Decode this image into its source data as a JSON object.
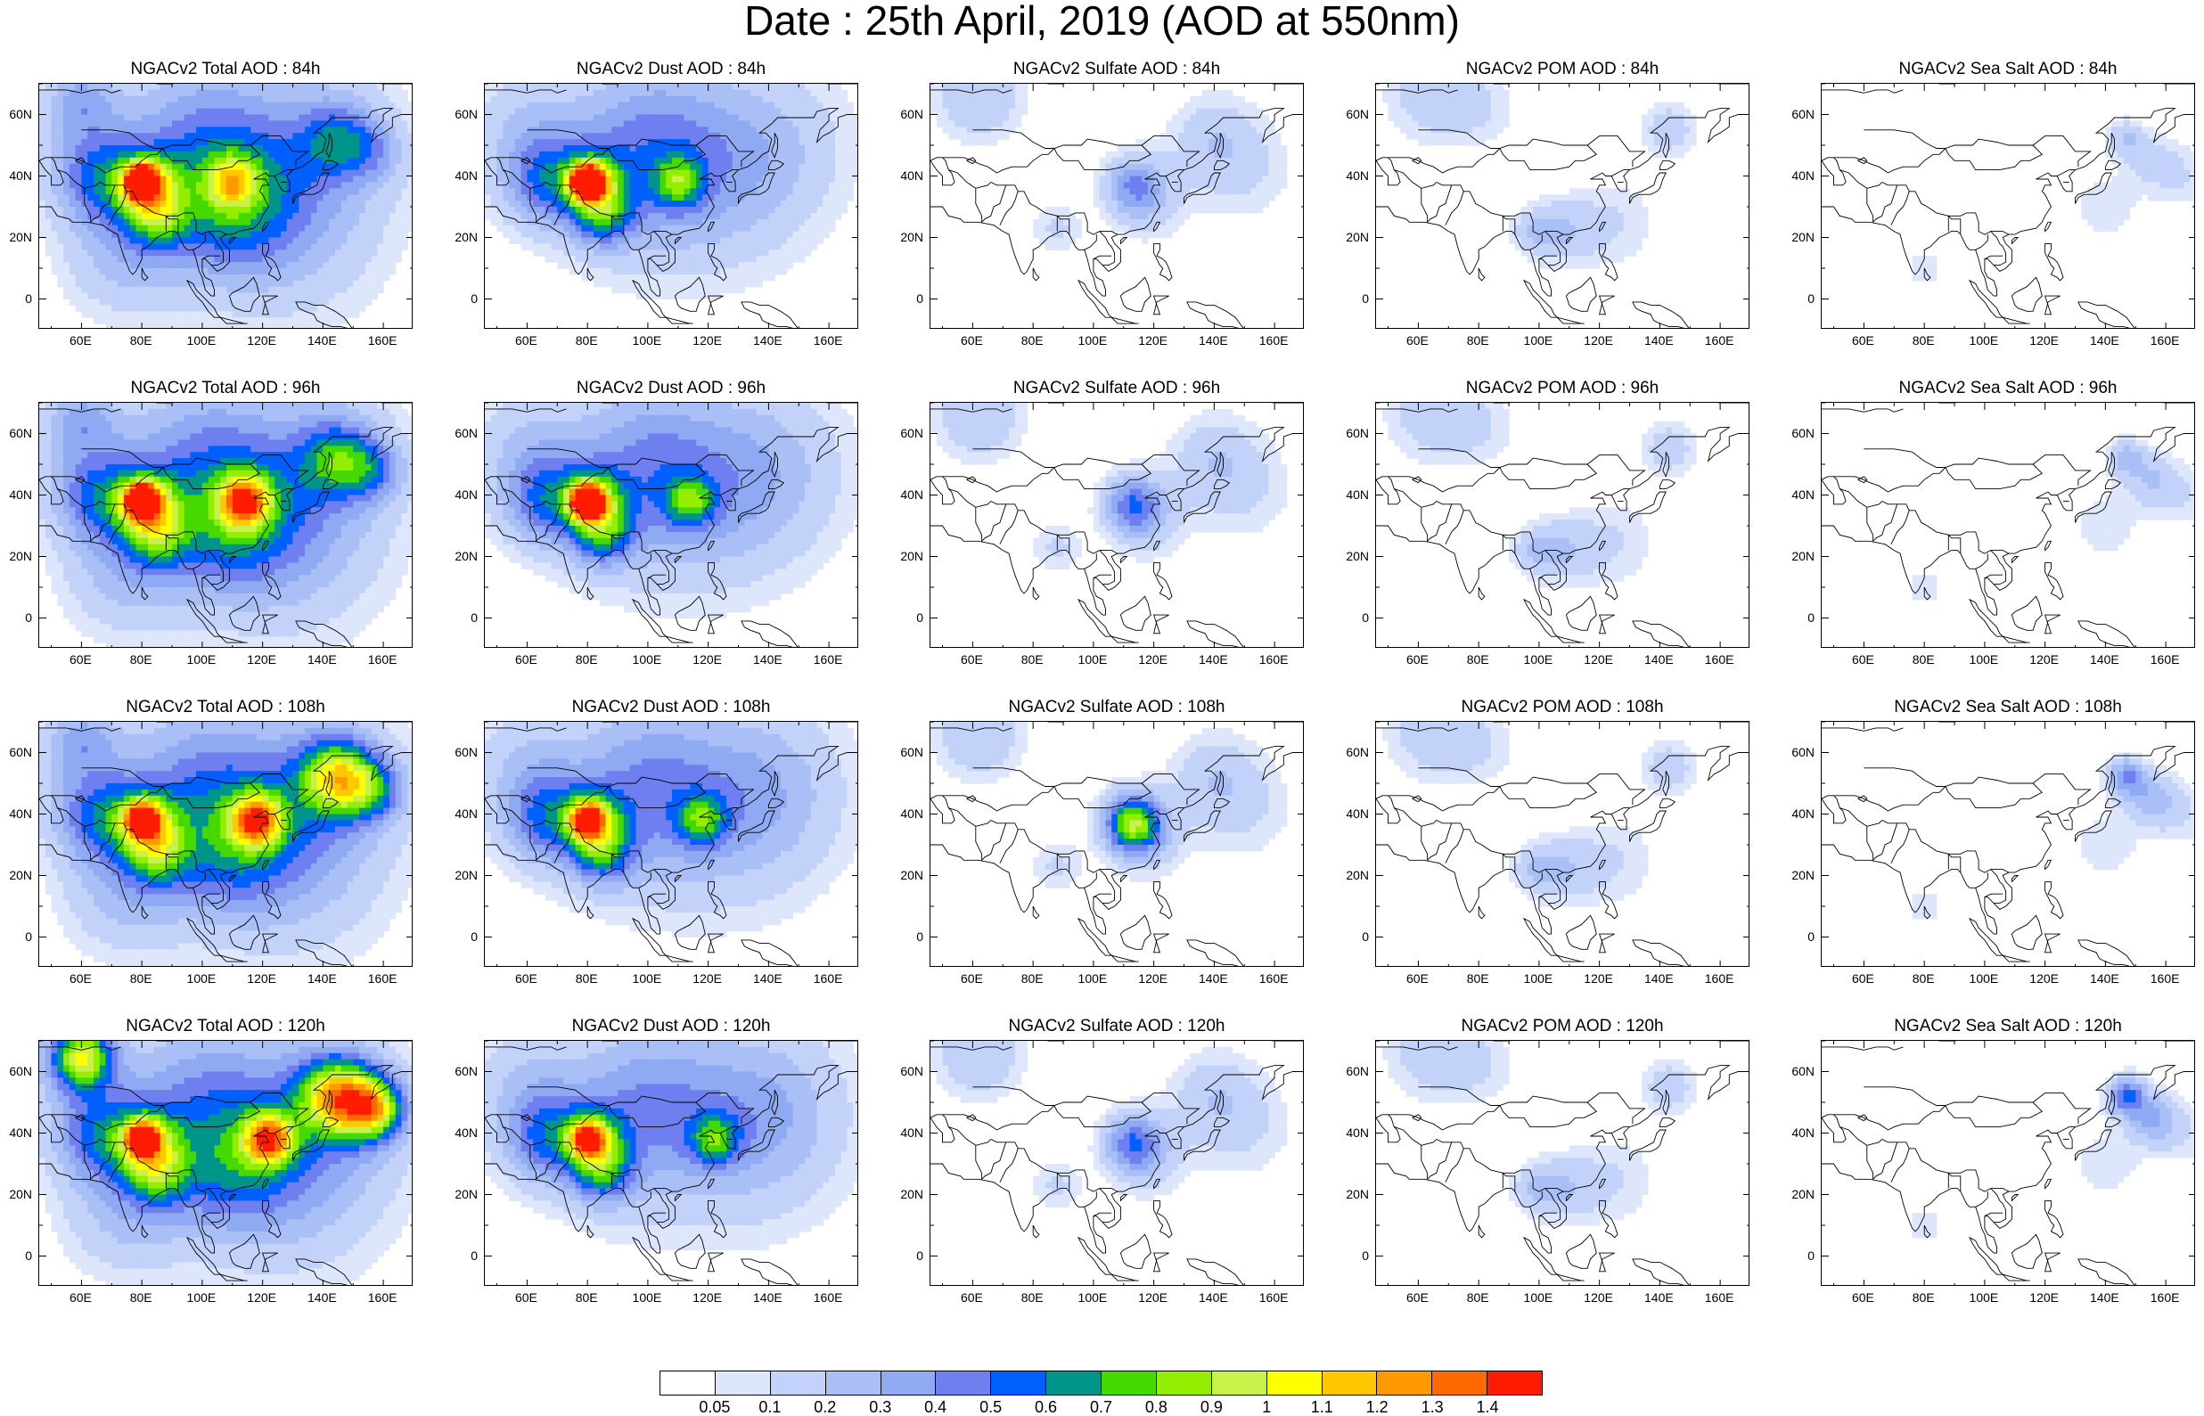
{
  "title": "Date : 25th April, 2019 (AOD at 550nm)",
  "axes": {
    "lat_labels": [
      "60N",
      "40N",
      "20N",
      "0"
    ],
    "lon_labels": [
      "60E",
      "80E",
      "100E",
      "120E",
      "140E",
      "160E"
    ]
  },
  "panels": [
    {
      "title": "NGACv2 Total AOD : 84h",
      "species": "total",
      "lead": 84
    },
    {
      "title": "NGACv2 Dust AOD : 84h",
      "species": "dust",
      "lead": 84
    },
    {
      "title": "NGACv2 Sulfate AOD : 84h",
      "species": "sulfate",
      "lead": 84
    },
    {
      "title": "NGACv2 POM AOD : 84h",
      "species": "pom",
      "lead": 84
    },
    {
      "title": "NGACv2 Sea Salt AOD : 84h",
      "species": "seasalt",
      "lead": 84
    },
    {
      "title": "NGACv2 Total AOD : 96h",
      "species": "total",
      "lead": 96
    },
    {
      "title": "NGACv2 Dust AOD : 96h",
      "species": "dust",
      "lead": 96
    },
    {
      "title": "NGACv2 Sulfate AOD : 96h",
      "species": "sulfate",
      "lead": 96
    },
    {
      "title": "NGACv2 POM AOD : 96h",
      "species": "pom",
      "lead": 96
    },
    {
      "title": "NGACv2 Sea Salt AOD : 96h",
      "species": "seasalt",
      "lead": 96
    },
    {
      "title": "NGACv2 Total AOD : 108h",
      "species": "total",
      "lead": 108
    },
    {
      "title": "NGACv2 Dust AOD : 108h",
      "species": "dust",
      "lead": 108
    },
    {
      "title": "NGACv2 Sulfate AOD : 108h",
      "species": "sulfate",
      "lead": 108
    },
    {
      "title": "NGACv2 POM AOD : 108h",
      "species": "pom",
      "lead": 108
    },
    {
      "title": "NGACv2 Sea Salt AOD : 108h",
      "species": "seasalt",
      "lead": 108
    },
    {
      "title": "NGACv2 Total AOD : 120h",
      "species": "total",
      "lead": 120
    },
    {
      "title": "NGACv2 Dust AOD : 120h",
      "species": "dust",
      "lead": 120
    },
    {
      "title": "NGACv2 Sulfate AOD : 120h",
      "species": "sulfate",
      "lead": 120
    },
    {
      "title": "NGACv2 POM AOD : 120h",
      "species": "pom",
      "lead": 120
    },
    {
      "title": "NGACv2 Sea Salt  AOD : 120h",
      "species": "seasalt",
      "lead": 120
    }
  ],
  "colorbar": {
    "labels": [
      "0.05",
      "0.1",
      "0.2",
      "0.3",
      "0.4",
      "0.5",
      "0.6",
      "0.7",
      "0.8",
      "0.9",
      "1",
      "1.1",
      "1.2",
      "1.3",
      "1.4"
    ],
    "colors": [
      "#ffffff",
      "#dde6fb",
      "#c2d2f8",
      "#a9bff5",
      "#8fa9f2",
      "#6f7ff0",
      "#0060ff",
      "#00958a",
      "#46d900",
      "#93ee00",
      "#c8f24a",
      "#ffff00",
      "#ffc800",
      "#ff9900",
      "#ff6a00",
      "#ff1c00"
    ]
  }
}
